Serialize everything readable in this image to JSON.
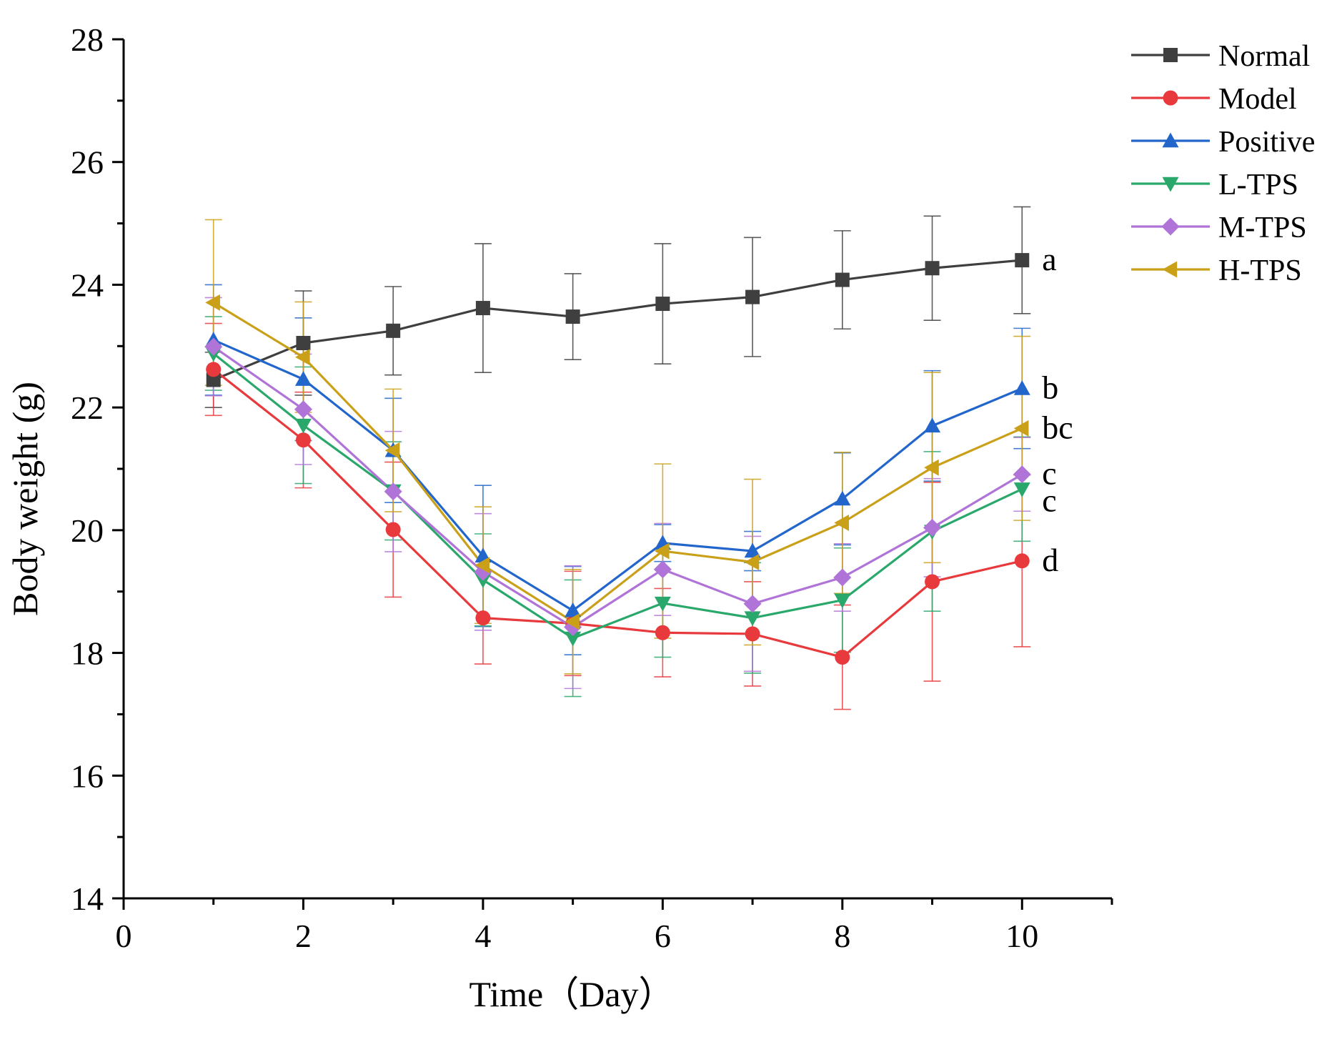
{
  "chart_data": {
    "type": "line",
    "title": "",
    "xlabel": "Time（Day）",
    "ylabel": "Body weight (g)",
    "xlim": [
      0,
      11
    ],
    "ylim": [
      14,
      28
    ],
    "x_ticks": [
      0,
      2,
      4,
      6,
      8,
      10
    ],
    "y_ticks": [
      14,
      16,
      18,
      20,
      22,
      24,
      26,
      28
    ],
    "x_tick_labels": [
      "0",
      "2",
      "4",
      "6",
      "8",
      "10"
    ],
    "y_tick_labels": [
      "14",
      "16",
      "18",
      "20",
      "22",
      "24",
      "26",
      "28"
    ],
    "grid": false,
    "legend_position": "top-right",
    "x": [
      1,
      2,
      3,
      4,
      5,
      6,
      7,
      8,
      9,
      10
    ],
    "series": [
      {
        "name": "Normal",
        "color": "#3f3f3f",
        "marker": "square",
        "values": [
          22.45,
          23.05,
          23.25,
          23.62,
          23.48,
          23.69,
          23.8,
          24.08,
          24.27,
          24.4
        ],
        "errors": [
          0.45,
          0.85,
          0.72,
          1.05,
          0.7,
          0.98,
          0.97,
          0.8,
          0.85,
          0.87
        ],
        "sig_label": "a"
      },
      {
        "name": "Model",
        "color": "#e8393c",
        "marker": "circle",
        "values": [
          22.62,
          21.47,
          20.01,
          18.57,
          18.48,
          18.33,
          18.31,
          17.93,
          19.16,
          19.5
        ],
        "errors": [
          0.75,
          0.78,
          1.1,
          0.75,
          0.85,
          0.72,
          0.85,
          0.85,
          1.62,
          1.4
        ],
        "sig_label": "d"
      },
      {
        "name": "Positive",
        "color": "#2266cc",
        "marker": "triangle-up",
        "values": [
          23.1,
          22.46,
          21.3,
          19.58,
          18.69,
          19.79,
          19.66,
          20.51,
          21.7,
          22.31
        ],
        "errors": [
          0.9,
          1.0,
          0.85,
          1.15,
          0.72,
          0.3,
          0.32,
          0.75,
          0.9,
          0.98
        ],
        "sig_label": "b"
      },
      {
        "name": "L-TPS",
        "color": "#2aa86c",
        "marker": "triangle-down",
        "values": [
          22.88,
          21.71,
          20.64,
          19.19,
          18.24,
          18.81,
          18.57,
          18.86,
          19.98,
          20.67
        ],
        "errors": [
          0.6,
          0.95,
          0.8,
          0.75,
          0.95,
          0.88,
          0.9,
          0.85,
          1.3,
          0.85
        ],
        "sig_label": "c"
      },
      {
        "name": "M-TPS",
        "color": "#b074d8",
        "marker": "diamond",
        "values": [
          22.99,
          21.97,
          20.63,
          19.32,
          18.42,
          19.36,
          18.8,
          19.23,
          20.04,
          20.91
        ],
        "errors": [
          0.8,
          0.9,
          0.98,
          0.95,
          1.0,
          0.75,
          1.1,
          0.55,
          0.8,
          0.6
        ],
        "sig_label": "c"
      },
      {
        "name": "H-TPS",
        "color": "#caa019",
        "marker": "triangle-left",
        "values": [
          23.71,
          22.82,
          21.3,
          19.43,
          18.51,
          19.66,
          19.48,
          20.12,
          21.02,
          21.66
        ],
        "errors": [
          1.35,
          0.9,
          1.0,
          0.95,
          0.85,
          1.42,
          1.35,
          1.15,
          1.55,
          1.5
        ],
        "sig_label": "bc"
      }
    ]
  }
}
